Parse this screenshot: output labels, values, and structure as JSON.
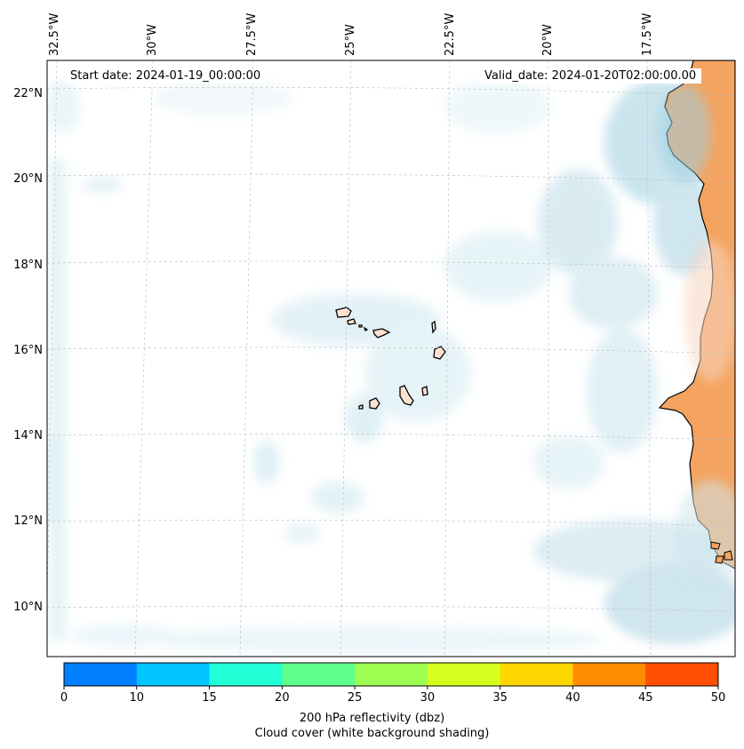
{
  "map": {
    "start_date": "Start date: 2024-01-19_00:00:00",
    "valid_date": "Valid_date: 2024-01-20T02:00:00.00",
    "longitude_labels": [
      "32.5°W",
      "30°W",
      "27.5°W",
      "25°W",
      "22.5°W",
      "20°W",
      "17.5°W"
    ],
    "latitude_labels": [
      "22°N",
      "20°N",
      "18°N",
      "16°N",
      "14°N",
      "12°N",
      "10°N"
    ],
    "land_color": "#f4a460",
    "cloud_color": "#b9dde9",
    "coast_color": "#000000"
  },
  "colorbar": {
    "ticks": [
      "0",
      "10",
      "15",
      "20",
      "25",
      "30",
      "35",
      "40",
      "45",
      "50"
    ],
    "colors": [
      "#007fff",
      "#00c5ff",
      "#20ffd6",
      "#5fff8c",
      "#9dff52",
      "#d7ff1e",
      "#ffd700",
      "#ff8c00",
      "#ff4f00"
    ],
    "label_line1": "200 hPa reflectivity (dbz)",
    "label_line2": "Cloud cover (white background shading)"
  }
}
